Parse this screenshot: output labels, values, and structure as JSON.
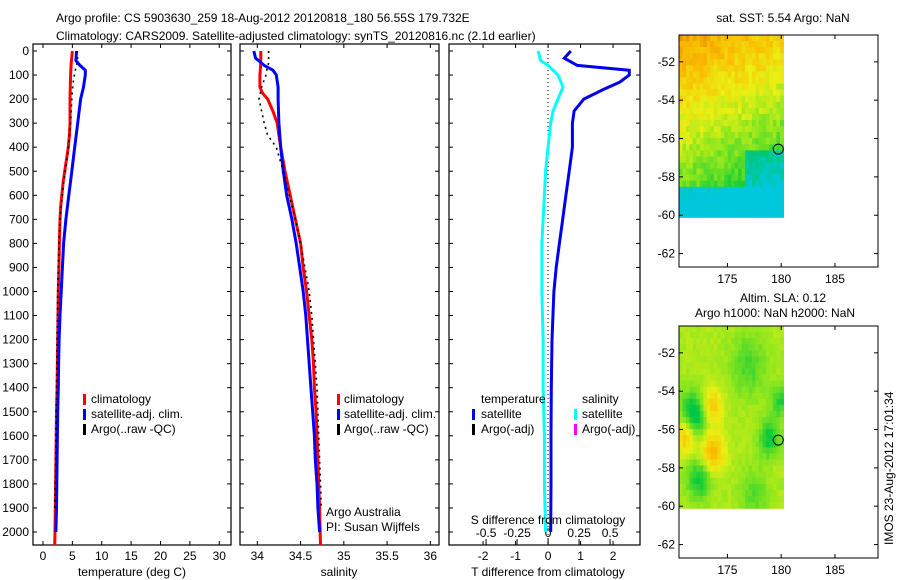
{
  "header": {
    "line1": "Argo profile: CS 5903630_259 18-Aug-2012 20120818_180 56.55S 179.732E",
    "line2": "Climatology: CARS2009. Satellite-adjusted climatology: synTS_20120816.nc (2.1d earlier)"
  },
  "footer_stamp": "IMOS 23-Aug-2012 17:01:34",
  "colors": {
    "climatology": "#ff0000",
    "satellite": "#0000ff",
    "argo": "#000000",
    "sal_satellite": "#00ffff",
    "sal_argo": "#ff00ff",
    "t_diff": "#0000ee"
  },
  "chart_data": [
    {
      "type": "line",
      "name": "temperature-profile",
      "xlabel": "temperature (deg C)",
      "ylabel": "",
      "xlim": [
        -1.7,
        32
      ],
      "ylim": [
        2055,
        0
      ],
      "xticks": [
        0,
        5,
        10,
        15,
        20,
        25,
        30
      ],
      "yticks": [
        0,
        100,
        200,
        300,
        400,
        500,
        600,
        700,
        800,
        900,
        1000,
        1100,
        1200,
        1300,
        1400,
        1500,
        1600,
        1700,
        1800,
        1900,
        2000
      ],
      "legend": [
        "climatology",
        "satellite-adj. clim.",
        "Argo(..raw -QC)"
      ],
      "legend_position": "center",
      "series": [
        {
          "name": "climatology",
          "color_key": "climatology",
          "depth": [
            0,
            50,
            100,
            200,
            300,
            350,
            400,
            450,
            500,
            550,
            600,
            650,
            700,
            800,
            900,
            1000,
            1100,
            1200,
            1400,
            1500,
            1600,
            1700,
            1800,
            1900,
            2000,
            2055
          ],
          "values": [
            5.0,
            4.8,
            4.7,
            4.6,
            4.6,
            4.5,
            4.3,
            4.0,
            3.7,
            3.4,
            3.2,
            3.0,
            2.9,
            2.8,
            2.7,
            2.6,
            2.55,
            2.5,
            2.4,
            2.3,
            2.25,
            2.2,
            2.15,
            2.1,
            2.05,
            2.0
          ]
        },
        {
          "name": "satellite-adj. clim.",
          "color_key": "satellite",
          "depth": [
            0,
            40,
            60,
            80,
            100,
            150,
            200,
            300,
            400,
            500,
            600,
            700,
            800,
            900,
            1000,
            1100,
            1200,
            1300,
            1400,
            1500,
            1600,
            1700,
            1800,
            1900,
            2000
          ],
          "values": [
            5.7,
            5.6,
            6.3,
            7.2,
            7.2,
            6.9,
            6.4,
            5.9,
            5.4,
            4.9,
            4.4,
            3.9,
            3.5,
            3.3,
            3.1,
            2.9,
            2.75,
            2.65,
            2.6,
            2.5,
            2.45,
            2.4,
            2.35,
            2.3,
            2.2
          ]
        },
        {
          "name": "Argo(..raw -QC)",
          "color_key": "argo",
          "depth": [
            0,
            40,
            80,
            120,
            160,
            200,
            250,
            300,
            350,
            400,
            450,
            500,
            550,
            600,
            650,
            700,
            750,
            800,
            850,
            900,
            950,
            1000,
            1100,
            1200,
            1300,
            1400,
            1500,
            1600,
            1700,
            1800,
            1900
          ],
          "values": [
            5.8,
            5.9,
            5.5,
            5.2,
            5.0,
            4.9,
            4.8,
            4.7,
            4.5,
            4.3,
            4.1,
            3.8,
            3.5,
            3.3,
            3.1,
            2.9,
            2.8,
            2.7,
            2.65,
            2.6,
            2.55,
            2.5,
            2.45,
            2.4,
            2.35,
            2.3,
            2.25,
            2.2,
            2.15,
            2.1,
            2.0
          ]
        }
      ]
    },
    {
      "type": "line",
      "name": "salinity-profile",
      "xlabel": "salinity",
      "xlim": [
        33.8,
        36.1
      ],
      "ylim": [
        2055,
        0
      ],
      "xticks": [
        34,
        34.5,
        35,
        35.5,
        36
      ],
      "xtick_labels": [
        "34",
        "34.5",
        "35",
        "35.5",
        "36"
      ],
      "legend": [
        "climatology",
        "satellite-adj. clim.",
        "Argo(..raw -QC)"
      ],
      "legend_position": "bottom-right",
      "annotation": [
        "Argo Australia",
        "PI: Susan Wijffels"
      ],
      "series": [
        {
          "name": "climatology",
          "color_key": "climatology",
          "depth": [
            0,
            50,
            100,
            150,
            175,
            200,
            250,
            300,
            350,
            400,
            500,
            600,
            700,
            800,
            900,
            1000,
            1100,
            1200,
            1300,
            1400,
            1500,
            1600,
            1700,
            1800,
            1900,
            2055
          ],
          "values": [
            34.04,
            34.04,
            34.03,
            34.03,
            34.06,
            34.12,
            34.18,
            34.23,
            34.25,
            34.27,
            34.32,
            34.38,
            34.44,
            34.5,
            34.53,
            34.57,
            34.6,
            34.63,
            34.65,
            34.66,
            34.68,
            34.69,
            34.7,
            34.71,
            34.72,
            34.73
          ]
        },
        {
          "name": "satellite-adj. clim.",
          "color_key": "satellite",
          "depth": [
            0,
            30,
            60,
            80,
            100,
            150,
            200,
            300,
            400,
            500,
            600,
            700,
            800,
            900,
            1000,
            1100,
            1200,
            1300,
            1400,
            1500,
            1600,
            1700,
            1800,
            1900,
            2000
          ],
          "values": [
            33.96,
            33.98,
            34.08,
            34.18,
            34.22,
            34.24,
            34.24,
            34.25,
            34.27,
            34.3,
            34.34,
            34.4,
            34.45,
            34.49,
            34.53,
            34.56,
            34.58,
            34.6,
            34.62,
            34.64,
            34.66,
            34.67,
            34.69,
            34.7,
            34.72
          ]
        },
        {
          "name": "Argo(..raw -QC)",
          "color_key": "argo",
          "depth": [
            0,
            50,
            80,
            100,
            150,
            200,
            250,
            300,
            350,
            400,
            500,
            600,
            700,
            800,
            900,
            1000,
            1100,
            1200,
            1300,
            1400,
            1500,
            1600,
            1700,
            1800,
            1900
          ],
          "values": [
            34.13,
            34.13,
            34.11,
            34.1,
            34.05,
            34.02,
            34.05,
            34.08,
            34.12,
            34.22,
            34.3,
            34.37,
            34.44,
            34.5,
            34.55,
            34.6,
            34.63,
            34.65,
            34.67,
            34.69,
            34.7,
            34.71,
            34.72,
            34.73,
            34.74
          ]
        }
      ]
    },
    {
      "type": "line",
      "name": "difference-profile",
      "xlabel": "T difference from climatology",
      "x2label": "S difference from climatology",
      "xlim": [
        -3.05,
        2.83
      ],
      "ylim": [
        2055,
        0
      ],
      "xticks": [
        -2,
        -1,
        0,
        1,
        2
      ],
      "x2ticks": [
        -0.5,
        -0.25,
        0,
        0.25,
        0.5
      ],
      "x2tick_labels": [
        "-0.5",
        "-0.25",
        "0",
        "0.25",
        "0.5"
      ],
      "legend": {
        "temperature_title": "temperature",
        "salinity_title": "salinity",
        "items": [
          "satellite",
          "Argo(-adj)",
          "satellite",
          "Argo(-adj)"
        ]
      },
      "series": [
        {
          "name": "T satellite",
          "color_key": "t_diff",
          "depth": [
            0,
            30,
            60,
            80,
            100,
            130,
            160,
            200,
            250,
            300,
            350,
            400,
            500,
            600,
            700,
            800,
            900,
            1000,
            1200,
            1400,
            1600,
            1800,
            2000
          ],
          "values": [
            0.7,
            0.5,
            0.9,
            2.5,
            2.5,
            2.2,
            1.7,
            1.1,
            0.8,
            0.75,
            0.75,
            0.75,
            0.65,
            0.55,
            0.45,
            0.35,
            0.25,
            0.18,
            0.12,
            0.1,
            0.09,
            0.09,
            0.08
          ]
        },
        {
          "name": "S satellite",
          "color_key": "sal_satellite",
          "depth": [
            0,
            40,
            60,
            100,
            150,
            200,
            250,
            300,
            400,
            500,
            600,
            700,
            800,
            900,
            1000,
            1200,
            1400,
            1600,
            1800,
            2000
          ],
          "values": [
            -0.08,
            -0.06,
            0.0,
            0.08,
            0.12,
            0.08,
            0.04,
            0.02,
            0.0,
            -0.02,
            -0.03,
            -0.04,
            -0.05,
            -0.05,
            -0.05,
            -0.04,
            -0.04,
            -0.03,
            -0.03,
            -0.02
          ]
        }
      ]
    },
    {
      "type": "heatmap",
      "name": "sst-map",
      "title": "sat. SST: 5.54 Argo: NaN",
      "xlim": [
        170.5,
        189
      ],
      "ylim": [
        -62.7,
        -50.6
      ],
      "xticks": [
        175,
        180,
        185
      ],
      "yticks": [
        -52,
        -54,
        -56,
        -58,
        -60,
        -62
      ],
      "marker": {
        "lon": 179.73,
        "lat": -56.55
      },
      "data_extent": {
        "lon": [
          170.5,
          180.2
        ],
        "lat": [
          -60.1,
          -50.6
        ]
      }
    },
    {
      "type": "heatmap",
      "name": "sla-map",
      "title_line1": "Altim. SLA: 0.12",
      "title_line2": "Argo h1000: NaN h2000: NaN",
      "xlim": [
        170.5,
        189
      ],
      "ylim": [
        -62.7,
        -50.6
      ],
      "xticks": [
        175,
        180,
        185
      ],
      "yticks": [
        -52,
        -54,
        -56,
        -58,
        -60,
        -62
      ],
      "marker": {
        "lon": 179.73,
        "lat": -56.55
      },
      "data_extent": {
        "lon": [
          170.5,
          180.2
        ],
        "lat": [
          -60.1,
          -50.6
        ]
      }
    }
  ]
}
